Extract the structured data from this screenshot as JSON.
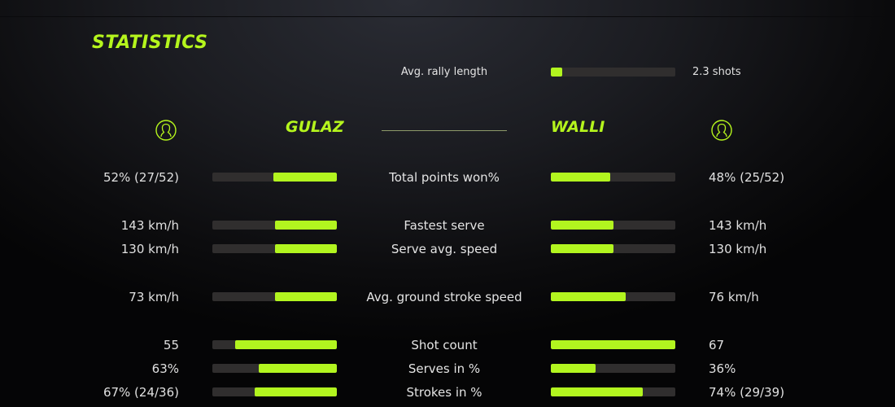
{
  "title": "STATISTICS",
  "accent_color": "#b5f51d",
  "rally": {
    "label": "Avg. rally length",
    "value": "2.3 shots",
    "fill": 0.09
  },
  "players": {
    "left": {
      "name": "GULAZ",
      "icon": "user-circle-icon"
    },
    "right": {
      "name": "WALLI",
      "icon": "user-circle-icon"
    }
  },
  "stats": [
    {
      "label": "Total points won%",
      "left": "52% (27/52)",
      "right": "48% (25/52)",
      "left_fill": 0.51,
      "right_fill": 0.48
    },
    {
      "label": "Fastest serve",
      "left": "143 km/h",
      "right": "143 km/h",
      "left_fill": 0.5,
      "right_fill": 0.5
    },
    {
      "label": "Serve avg. speed",
      "left": "130 km/h",
      "right": "130 km/h",
      "left_fill": 0.5,
      "right_fill": 0.5
    },
    {
      "label": "Avg. ground stroke speed",
      "left": "73 km/h",
      "right": "76 km/h",
      "left_fill": 0.5,
      "right_fill": 0.6
    },
    {
      "label": "Shot count",
      "left": "55",
      "right": "67",
      "left_fill": 0.82,
      "right_fill": 1.0
    },
    {
      "label": "Serves in %",
      "left": "63%",
      "right": "36%",
      "left_fill": 0.63,
      "right_fill": 0.36
    },
    {
      "label": "Strokes in %",
      "left": "67% (24/36)",
      "right": "74% (29/39)",
      "left_fill": 0.66,
      "right_fill": 0.74
    }
  ]
}
